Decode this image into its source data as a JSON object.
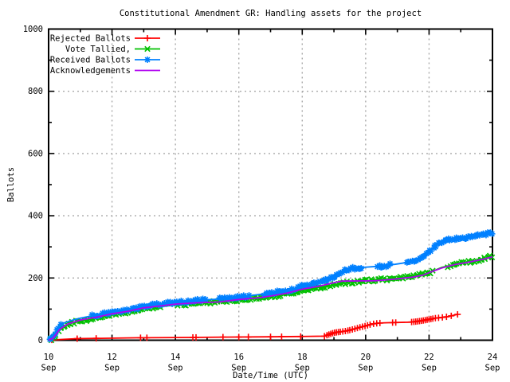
{
  "chart_data": {
    "type": "line",
    "title": "Constitutional Amendment GR: Handling assets for the project",
    "xlabel": "Date/Time (UTC)",
    "ylabel": "Ballots",
    "x_unit": "days since Sep 10 00:00 UTC",
    "grid": true,
    "legend_position": "top-left",
    "background": "#ffffff",
    "grid_color": "#a8a8a8",
    "axis_color": "#000000",
    "x_axis": {
      "min": 0,
      "max": 14,
      "minor_step_days": 1,
      "ticks": [
        {
          "day": 0,
          "label": "10",
          "sub": "Sep"
        },
        {
          "day": 2,
          "label": "12",
          "sub": "Sep"
        },
        {
          "day": 4,
          "label": "14",
          "sub": "Sep"
        },
        {
          "day": 6,
          "label": "16",
          "sub": "Sep"
        },
        {
          "day": 8,
          "label": "18",
          "sub": "Sep"
        },
        {
          "day": 10,
          "label": "20",
          "sub": "Sep"
        },
        {
          "day": 12,
          "label": "22",
          "sub": "Sep"
        },
        {
          "day": 14,
          "label": "24",
          "sub": "Sep"
        }
      ]
    },
    "y_axis": {
      "min": 0,
      "max": 1000,
      "major_step": 200,
      "minor_step": 100,
      "tick_labels": [
        "0",
        "200",
        "400",
        "600",
        "800",
        "1000"
      ]
    },
    "series": [
      {
        "name": "Rejected Ballots",
        "color": "#ff0000",
        "marker": "plus",
        "marker_mode": "explicit",
        "marker_days": [
          0.1,
          0.9,
          1.5,
          2.9,
          3.1,
          4.55,
          4.65,
          5.5,
          6.0,
          6.3,
          7.0,
          7.35,
          7.95,
          8.7,
          8.78,
          8.84,
          8.9,
          8.96,
          9.02,
          9.08,
          9.14,
          9.2,
          9.28,
          9.36,
          9.44,
          9.5,
          9.58,
          9.66,
          9.74,
          9.82,
          9.9,
          9.98,
          10.06,
          10.14,
          10.25,
          10.35,
          10.45,
          10.85,
          10.95,
          11.45,
          11.52,
          11.58,
          11.64,
          11.7,
          11.76,
          11.82,
          11.88,
          11.94,
          12.0,
          12.06,
          12.12,
          12.2,
          12.3,
          12.42,
          12.55,
          12.7,
          12.9
        ],
        "points": [
          [
            0,
            0
          ],
          [
            0.1,
            1
          ],
          [
            0.9,
            5
          ],
          [
            1.5,
            6
          ],
          [
            2.9,
            8
          ],
          [
            3.1,
            8
          ],
          [
            4.55,
            9
          ],
          [
            5.5,
            10
          ],
          [
            7,
            11
          ],
          [
            7.95,
            12
          ],
          [
            8.7,
            13
          ],
          [
            8.8,
            17
          ],
          [
            9,
            24
          ],
          [
            9.2,
            27
          ],
          [
            9.4,
            30
          ],
          [
            9.6,
            35
          ],
          [
            9.8,
            41
          ],
          [
            10,
            46
          ],
          [
            10.2,
            52
          ],
          [
            10.4,
            55
          ],
          [
            10.6,
            56
          ],
          [
            11,
            57
          ],
          [
            11.4,
            58
          ],
          [
            11.6,
            60
          ],
          [
            11.8,
            63
          ],
          [
            12,
            67
          ],
          [
            12.2,
            71
          ],
          [
            12.4,
            73
          ],
          [
            12.6,
            76
          ],
          [
            12.9,
            83
          ]
        ]
      },
      {
        "name": "Vote Tallied,",
        "color": "#00c000",
        "marker": "cross",
        "marker_mode": "band",
        "marker_step": 0.055,
        "marker_jitter": 4.5,
        "points": [
          [
            0,
            0
          ],
          [
            0.12,
            4
          ],
          [
            0.25,
            20
          ],
          [
            0.4,
            40
          ],
          [
            0.6,
            52
          ],
          [
            1,
            62
          ],
          [
            1.4,
            70
          ],
          [
            1.8,
            78
          ],
          [
            2.2,
            86
          ],
          [
            2.6,
            93
          ],
          [
            3,
            102
          ],
          [
            3.5,
            108
          ],
          [
            4,
            113
          ],
          [
            4.5,
            117
          ],
          [
            5,
            121
          ],
          [
            5.5,
            125
          ],
          [
            6,
            129
          ],
          [
            6.5,
            134
          ],
          [
            7,
            139
          ],
          [
            7.5,
            148
          ],
          [
            8,
            160
          ],
          [
            8.5,
            169
          ],
          [
            9,
            177
          ],
          [
            9.3,
            183
          ],
          [
            9.6,
            187
          ],
          [
            10,
            191
          ],
          [
            10.5,
            195
          ],
          [
            11,
            199
          ],
          [
            11.5,
            205
          ],
          [
            11.9,
            213
          ],
          [
            12.1,
            221
          ],
          [
            12.4,
            234
          ],
          [
            12.7,
            241
          ],
          [
            13,
            247
          ],
          [
            13.3,
            252
          ],
          [
            13.6,
            258
          ],
          [
            14,
            270
          ]
        ]
      },
      {
        "name": "Received Ballots",
        "color": "#0080ff",
        "marker": "star",
        "marker_mode": "band",
        "marker_step": 0.055,
        "marker_jitter": 4.5,
        "points": [
          [
            0,
            0
          ],
          [
            0.1,
            5
          ],
          [
            0.2,
            22
          ],
          [
            0.35,
            45
          ],
          [
            0.5,
            56
          ],
          [
            0.7,
            63
          ],
          [
            1,
            71
          ],
          [
            1.3,
            77
          ],
          [
            1.6,
            82
          ],
          [
            2,
            89
          ],
          [
            2.4,
            96
          ],
          [
            2.8,
            103
          ],
          [
            3.1,
            112
          ],
          [
            3.5,
            117
          ],
          [
            4,
            122
          ],
          [
            4.5,
            126
          ],
          [
            5,
            130
          ],
          [
            5.5,
            133
          ],
          [
            6,
            138
          ],
          [
            6.5,
            145
          ],
          [
            7,
            152
          ],
          [
            7.4,
            157
          ],
          [
            7.7,
            163
          ],
          [
            8,
            175
          ],
          [
            8.4,
            182
          ],
          [
            8.7,
            190
          ],
          [
            9,
            205
          ],
          [
            9.3,
            224
          ],
          [
            9.6,
            231
          ],
          [
            9.9,
            234
          ],
          [
            10.2,
            236
          ],
          [
            10.5,
            238
          ],
          [
            10.8,
            242
          ],
          [
            11,
            245
          ],
          [
            11.3,
            250
          ],
          [
            11.6,
            257
          ],
          [
            11.9,
            273
          ],
          [
            12.1,
            295
          ],
          [
            12.3,
            312
          ],
          [
            12.5,
            320
          ],
          [
            12.8,
            326
          ],
          [
            13.1,
            329
          ],
          [
            13.4,
            333
          ],
          [
            13.7,
            339
          ],
          [
            14,
            346
          ]
        ]
      },
      {
        "name": "Acknowledgements",
        "color": "#b000f0",
        "marker": "none",
        "marker_mode": "none",
        "points": [
          [
            0,
            0
          ],
          [
            0.15,
            8
          ],
          [
            0.35,
            35
          ],
          [
            0.6,
            52
          ],
          [
            1,
            65
          ],
          [
            1.5,
            74
          ],
          [
            2,
            85
          ],
          [
            2.5,
            93
          ],
          [
            3,
            104
          ],
          [
            3.5,
            110
          ],
          [
            4,
            116
          ],
          [
            4.6,
            120
          ],
          [
            5.4,
            123
          ],
          [
            6,
            131
          ],
          [
            6.6,
            136
          ],
          [
            7,
            142
          ],
          [
            7.5,
            151
          ],
          [
            8,
            164
          ],
          [
            8.5,
            173
          ],
          [
            9,
            185
          ],
          [
            9.25,
            190
          ],
          [
            10.3,
            191
          ],
          [
            10.9,
            196
          ],
          [
            11.5,
            203
          ],
          [
            11.8,
            209
          ],
          [
            12.1,
            221
          ],
          [
            12.4,
            232
          ],
          [
            12.8,
            243
          ],
          [
            13.3,
            252
          ],
          [
            13.7,
            260
          ],
          [
            14,
            268
          ]
        ]
      }
    ]
  }
}
